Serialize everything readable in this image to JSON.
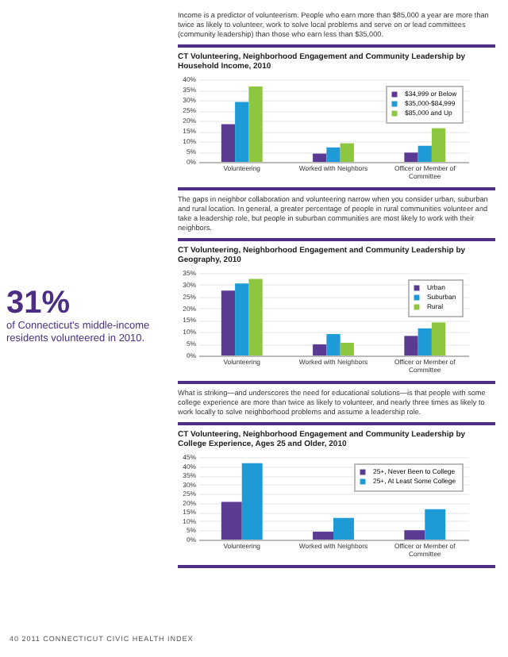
{
  "chart_data": [
    {
      "type": "bar",
      "title": "CT Volunteering, Neighborhood Engagement and Community Leadership by Household Income, 2010",
      "annotations": [
        "Income is a predictor of volunteerism. People who earn more than $85,000 a year are more than twice as likely to volunteer, work to solve local problems and serve on or lead committees (community leadership) than those who earn less than $35,000."
      ],
      "categories": [
        "Volunteering",
        "Worked with Neighbors",
        "Officer or Member of Committee"
      ],
      "series": [
        {
          "name": "$34,999 or Below",
          "color": "#5b3a94",
          "values": [
            18.3,
            4.0,
            4.5
          ]
        },
        {
          "name": "$35,000-$84,999",
          "color": "#1e9ad6",
          "values": [
            29.0,
            7.0,
            7.8
          ]
        },
        {
          "name": "$85,000 and Up",
          "color": "#8dc63f",
          "values": [
            36.5,
            9.0,
            16.3
          ]
        }
      ],
      "ylim": [
        0,
        40
      ],
      "yticks": [
        {
          "value": 0,
          "label": "0%"
        },
        {
          "value": 5,
          "label": "5%"
        },
        {
          "value": 10,
          "label": "10%"
        },
        {
          "value": 15,
          "label": "15%"
        },
        {
          "value": 20,
          "label": "20%"
        },
        {
          "value": 25,
          "label": "25%"
        },
        {
          "value": 30,
          "label": "30%"
        },
        {
          "value": 35,
          "label": "35%"
        },
        {
          "value": 40,
          "label": "40%"
        }
      ],
      "grid": "y",
      "legend": "top right"
    },
    {
      "type": "bar",
      "title": "CT Volunteering, Neighborhood Engagement and Community Leadership by Geography, 2010",
      "annotations": [
        "The gaps in neighbor collaboration and volunteering narrow when you consider urban, suburban and rural location. In general, a greater percentage of people in rural communities volunteer and take a leadership role, but people in suburban communities are most likely to work with their neighbors."
      ],
      "categories": [
        "Volunteering",
        "Worked with Neighbors",
        "Officer or Member of Committee"
      ],
      "series": [
        {
          "name": "Urban",
          "color": "#5b3a94",
          "values": [
            27.5,
            4.7,
            8.3
          ]
        },
        {
          "name": "Suburban",
          "color": "#1e9ad6",
          "values": [
            30.5,
            9.1,
            11.5
          ]
        },
        {
          "name": "Rural",
          "color": "#8dc63f",
          "values": [
            32.5,
            5.4,
            14.0
          ]
        }
      ],
      "ylim": [
        0,
        35
      ],
      "yticks": [
        {
          "value": 0,
          "label": "0%"
        },
        {
          "value": 5,
          "label": "5%"
        },
        {
          "value": 10,
          "label": "10%"
        },
        {
          "value": 15,
          "label": "15%"
        },
        {
          "value": 20,
          "label": "20%"
        },
        {
          "value": 25,
          "label": "25%"
        },
        {
          "value": 30,
          "label": "30%"
        },
        {
          "value": 35,
          "label": "35%"
        }
      ],
      "grid": "y",
      "legend": "top right"
    },
    {
      "type": "bar",
      "title": "CT Volunteering, Neighborhood Engagement and Community Leadership by College Experience, Ages 25 and Older, 2010",
      "annotations": [
        "What is striking—and underscores the need for educational solutions—is that people with some college experience are more than twice as likely to volunteer, and nearly three times as likely to work locally to solve neighborhood problems and assume a leadership role.",
        "31%",
        "of Connecticut's middle-income residents volunteered in 2010.",
        "40  2011 CONNECTICUT CIVIC HEALTH INDEX"
      ],
      "categories": [
        "Volunteering",
        "Worked with Neighbors",
        "Officer or Member of Committee"
      ],
      "series": [
        {
          "name": "25+, Never Been to College",
          "color": "#5b3a94",
          "values": [
            20.6,
            4.3,
            5.1
          ]
        },
        {
          "name": "25+, At Least Some College",
          "color": "#1e9ad6",
          "values": [
            41.6,
            11.8,
            16.6
          ]
        }
      ],
      "ylim": [
        0,
        45
      ],
      "yticks": [
        {
          "value": 0,
          "label": "0%"
        },
        {
          "value": 5,
          "label": "5%"
        },
        {
          "value": 10,
          "label": "10%"
        },
        {
          "value": 15,
          "label": "15%"
        },
        {
          "value": 20,
          "label": "20%"
        },
        {
          "value": 25,
          "label": "25%"
        },
        {
          "value": 30,
          "label": "30%"
        },
        {
          "value": 35,
          "label": "35%"
        },
        {
          "value": 40,
          "label": "40%"
        },
        {
          "value": 45,
          "label": "45%"
        }
      ],
      "grid": "y",
      "legend": "top right"
    }
  ]
}
